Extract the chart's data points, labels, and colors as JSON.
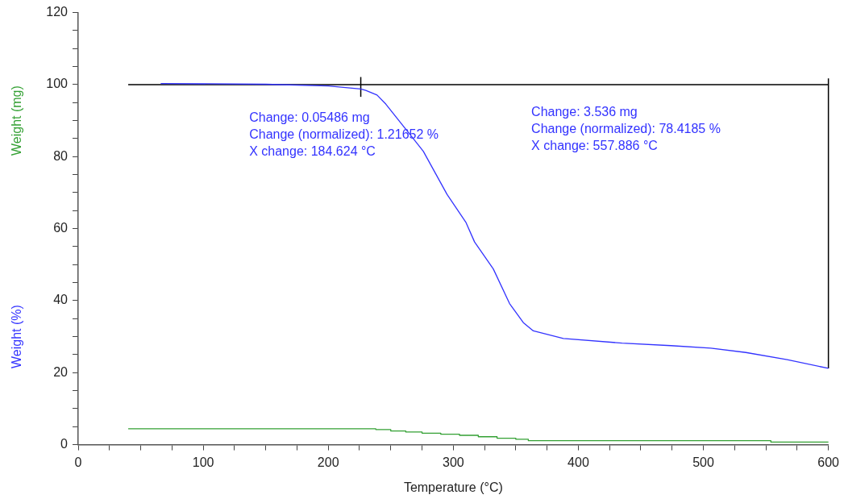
{
  "chart_data": {
    "type": "line",
    "xlabel": "Temperature (°C)",
    "xlim": [
      0,
      600
    ],
    "ylim": [
      0,
      120
    ],
    "xticks": [
      0,
      {
        "value": 25,
        "label": null
      },
      {
        "value": 50,
        "label": null
      },
      {
        "value": 75,
        "label": null
      },
      100,
      {
        "value": 125,
        "label": null
      },
      {
        "value": 150,
        "label": null
      },
      {
        "value": 175,
        "label": null
      },
      200,
      {
        "value": 225,
        "label": null
      },
      {
        "value": 250,
        "label": null
      },
      {
        "value": 275,
        "label": null
      },
      300,
      {
        "value": 325,
        "label": null
      },
      {
        "value": 350,
        "label": null
      },
      {
        "value": 375,
        "label": null
      },
      400,
      {
        "value": 425,
        "label": null
      },
      {
        "value": 450,
        "label": null
      },
      {
        "value": 475,
        "label": null
      },
      500,
      {
        "value": 525,
        "label": null
      },
      {
        "value": 550,
        "label": null
      },
      {
        "value": 575,
        "label": null
      },
      600
    ],
    "yticks": [
      0,
      {
        "value": 5,
        "label": null
      },
      {
        "value": 10,
        "label": null
      },
      {
        "value": 15,
        "label": null
      },
      20,
      {
        "value": 25,
        "label": null
      },
      {
        "value": 30,
        "label": null
      },
      {
        "value": 35,
        "label": null
      },
      40,
      {
        "value": 45,
        "label": null
      },
      {
        "value": 50,
        "label": null
      },
      {
        "value": 55,
        "label": null
      },
      60,
      {
        "value": 65,
        "label": null
      },
      {
        "value": 70,
        "label": null
      },
      {
        "value": 75,
        "label": null
      },
      80,
      {
        "value": 85,
        "label": null
      },
      {
        "value": 90,
        "label": null
      },
      {
        "value": 95,
        "label": null
      },
      100,
      {
        "value": 105,
        "label": null
      },
      {
        "value": 110,
        "label": null
      },
      {
        "value": 115,
        "label": null
      },
      120
    ],
    "grid": false,
    "legend": false,
    "marker": "none",
    "series": [
      {
        "name": "Weight (mg)",
        "type": "step",
        "color": "#33a033",
        "x": [
          40,
          238,
          250,
          262,
          275,
          290,
          305,
          320,
          335,
          350,
          360,
          376,
          554,
          600
        ],
        "values": [
          4.4,
          4.2,
          3.8,
          3.5,
          3.2,
          2.9,
          2.6,
          2.2,
          1.8,
          1.5,
          1.1,
          1.1,
          0.7,
          0.7
        ]
      },
      {
        "name": "Weight (%)",
        "color": "#3333ff",
        "x": [
          66,
          150,
          200,
          226,
          230,
          239,
          246,
          260,
          276,
          295,
          310,
          317,
          332,
          345,
          356,
          364,
          388,
          435,
          474,
          506,
          534,
          567,
          600
        ],
        "values": [
          100.3,
          100.1,
          99.6,
          98.8,
          98.4,
          97.1,
          94.6,
          88.5,
          81.5,
          69.5,
          61.8,
          56.3,
          48.8,
          39.2,
          33.9,
          31.6,
          29.5,
          28.2,
          27.5,
          26.8,
          25.6,
          23.6,
          21.2
        ]
      },
      {
        "color": "#000000",
        "x": [
          40,
          600
        ],
        "values": [
          100,
          100
        ]
      },
      {
        "color": "#000000",
        "x": [
          226,
          226
        ],
        "values": [
          96.6,
          102.1
        ]
      },
      {
        "color": "#000000",
        "x": [
          600,
          600
        ],
        "values": [
          21.2,
          101.7
        ]
      }
    ],
    "annotations": [
      "Change: 0.05486 mg",
      "Change (normalized): 1.21652 %",
      "X change: 184.624 °C",
      "Change: 3.536 mg",
      "Change (normalized): 78.4185 %",
      "X change: 557.886 °C"
    ]
  }
}
